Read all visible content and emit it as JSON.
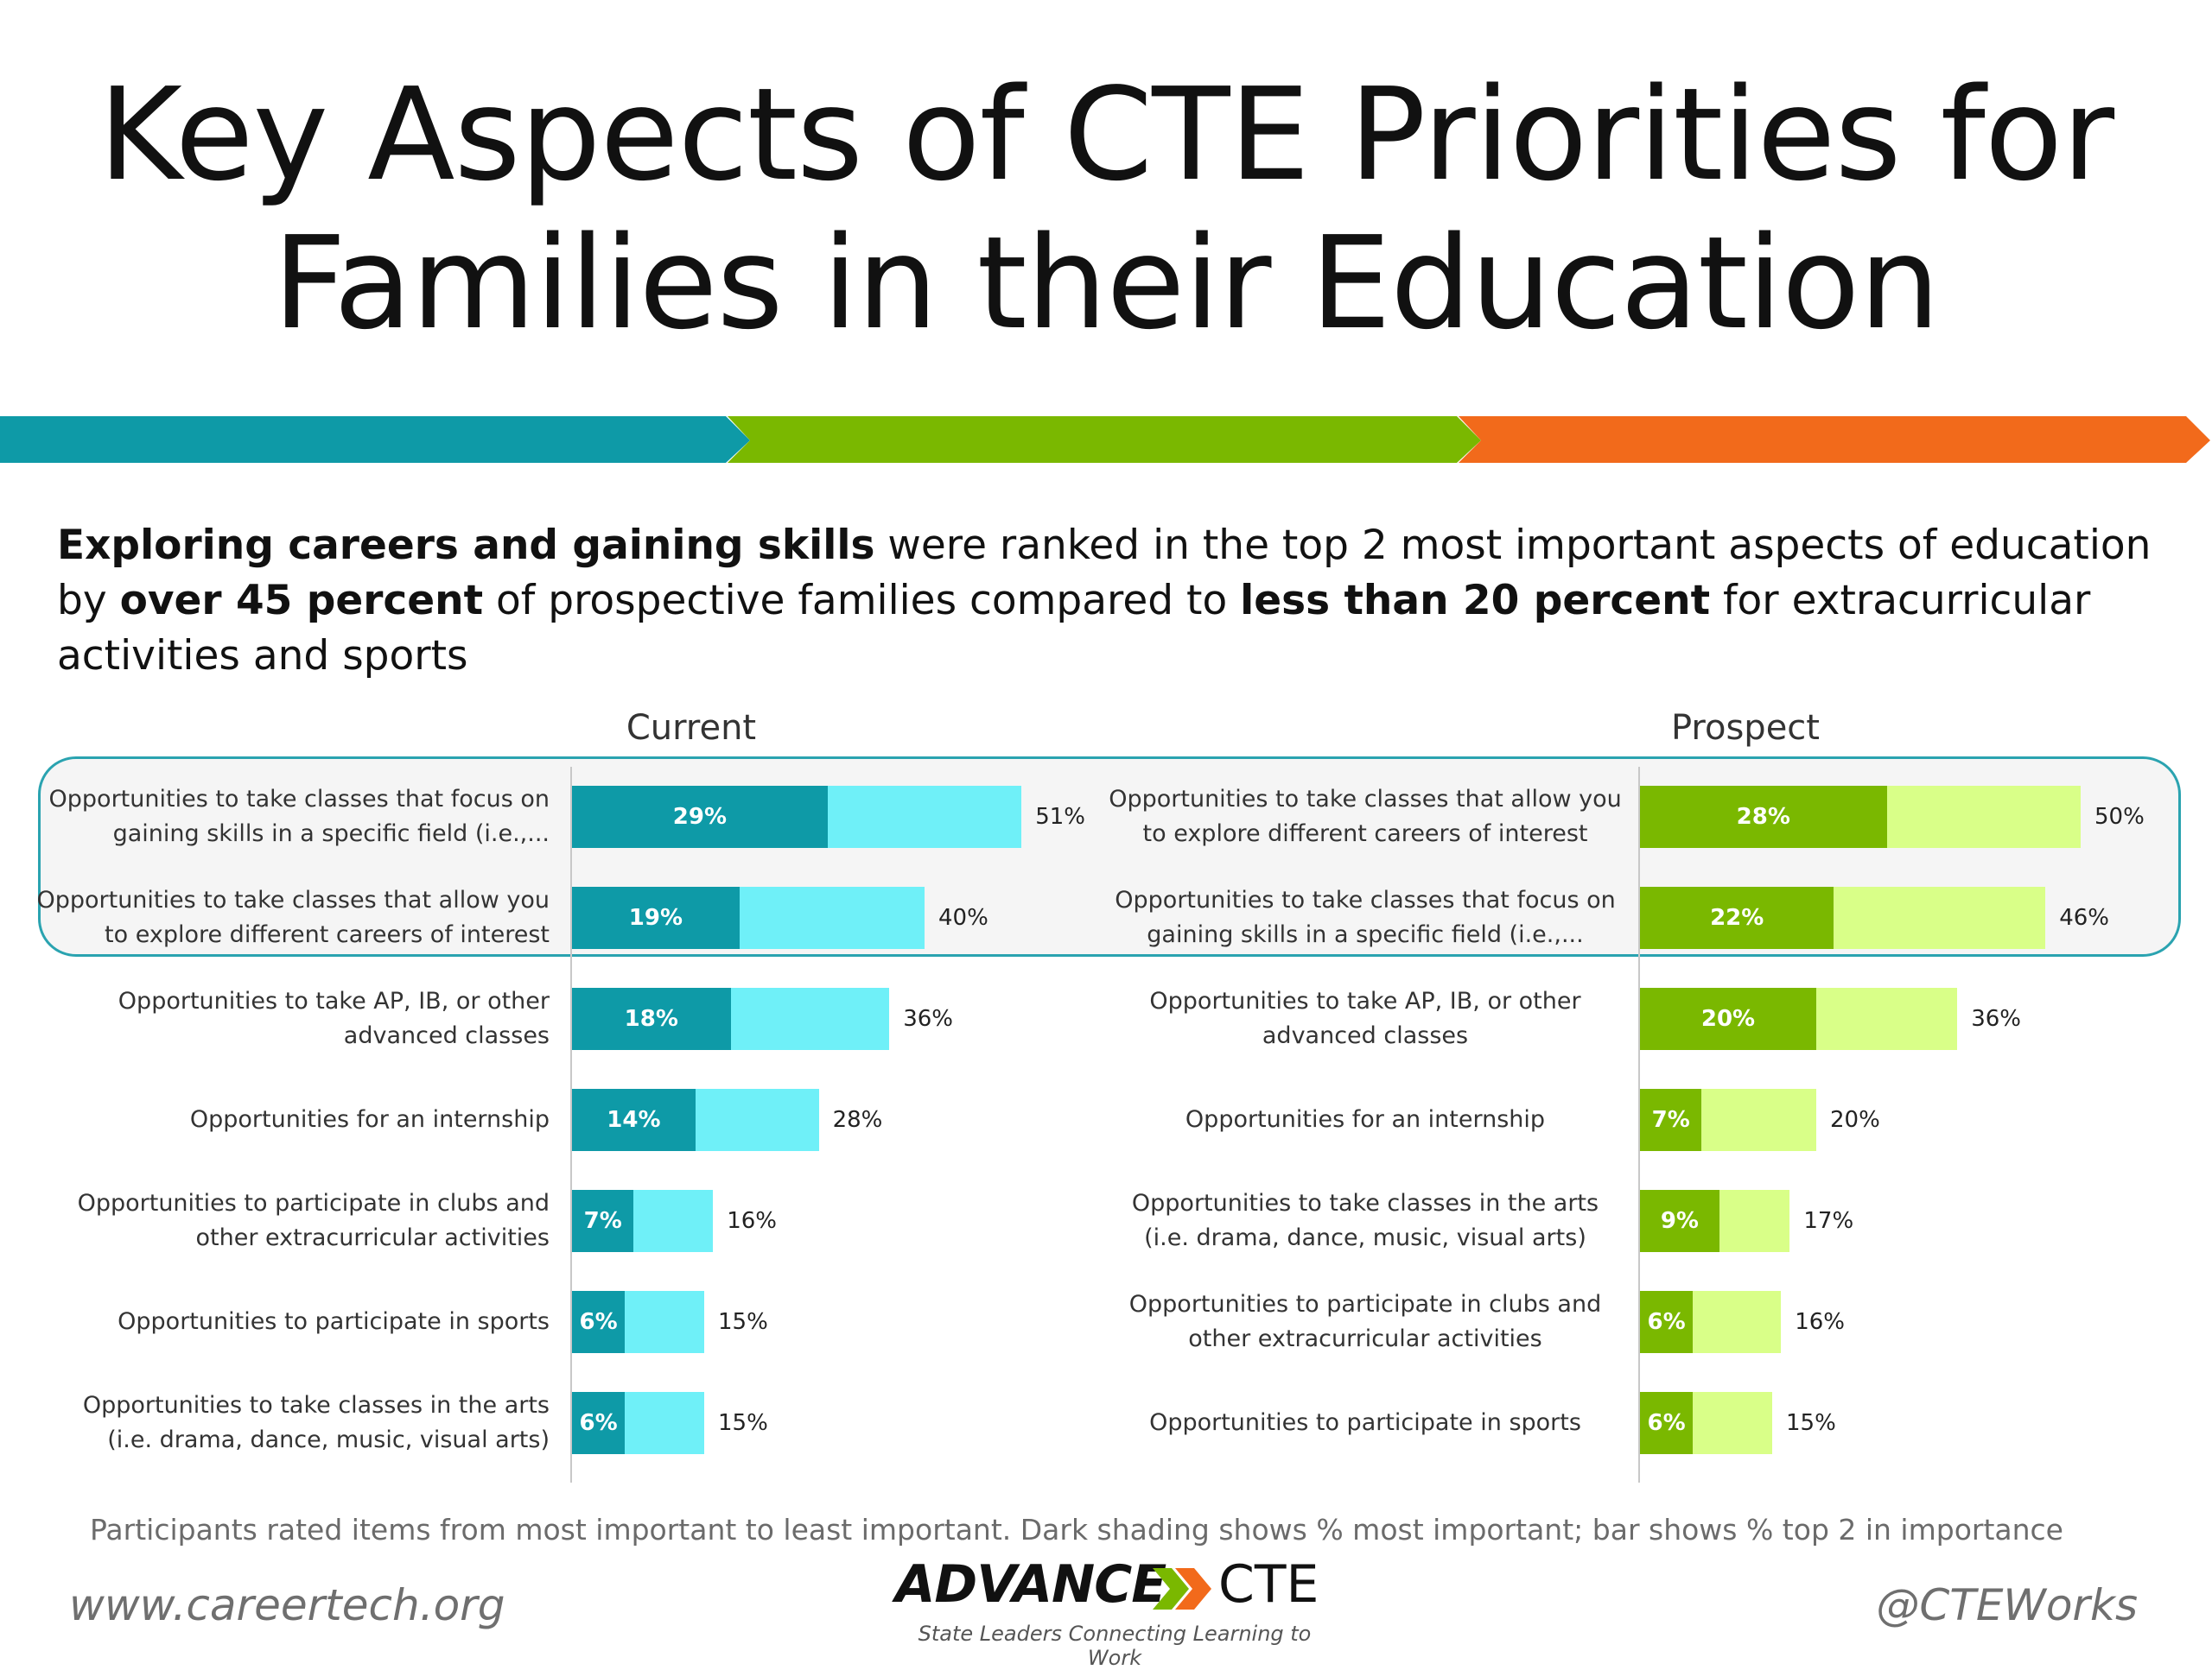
{
  "slide": {
    "title_line1": "Key Aspects of CTE Priorities for",
    "title_line2": "Families in their Education",
    "ribbon_colors": [
      "#0e9aa7",
      "#7ab800",
      "#f26a1b"
    ],
    "intro": {
      "b1": "Exploring careers and gaining skills",
      "t1": " were ranked in the top 2 most important aspects of education by ",
      "b2": "over 45 percent",
      "t2": " of prospective families compared to ",
      "b3": "less than 20 percent",
      "t3": " for extracurricular activities and sports"
    },
    "footnote": "Participants rated items from most important to least important.  Dark shading shows % most important; bar shows % top 2 in importance",
    "website": "www.careertech.org",
    "handle": "@CTEWorks",
    "logo": {
      "word1": "ADVANCE",
      "word2": "CTE",
      "tagline": "State Leaders Connecting Learning to Work",
      "chevron_colors": [
        "#7ab800",
        "#f26a1b"
      ]
    }
  },
  "chart_data": [
    {
      "type": "bar",
      "orientation": "horizontal",
      "title": "Current",
      "colors": {
        "most_important": "#0e9aa7",
        "top2": "#6ff0f8"
      },
      "categories": [
        "Opportunities to take classes that focus on gaining skills in a specific field (i.e.,...",
        "Opportunities to take classes that allow you to explore different careers of interest",
        "Opportunities to take AP, IB, or other advanced classes",
        "Opportunities for an internship",
        "Opportunities to participate in clubs and other extracurricular activities",
        "Opportunities to participate in sports",
        "Opportunities to take classes in the arts (i.e. drama, dance, music, visual arts)"
      ],
      "series": [
        {
          "values": [
            29,
            19,
            18,
            14,
            7,
            6,
            6
          ]
        },
        {
          "values": [
            51,
            40,
            36,
            28,
            16,
            15,
            15
          ]
        }
      ],
      "value_labels_most": [
        "29%",
        "19%",
        "18%",
        "14%",
        "7%",
        "6%",
        "6%"
      ],
      "value_labels_top2": [
        "51%",
        "40%",
        "36%",
        "28%",
        "16%",
        "15%",
        "15%"
      ],
      "highlighted_rows": [
        0,
        1
      ]
    },
    {
      "type": "bar",
      "orientation": "horizontal",
      "title": "Prospect",
      "colors": {
        "most_important": "#7ab800",
        "top2": "#d9ff88"
      },
      "categories": [
        "Opportunities to take classes that allow you to explore different careers of interest",
        "Opportunities to take classes that focus on gaining skills in a specific field (i.e.,...",
        "Opportunities to take AP, IB, or other advanced classes",
        "Opportunities for an internship",
        "Opportunities to take classes in the arts (i.e. drama, dance, music, visual arts)",
        "Opportunities to participate in clubs and other extracurricular activities",
        "Opportunities to participate in sports"
      ],
      "series": [
        {
          "values": [
            28,
            22,
            20,
            7,
            9,
            6,
            6
          ]
        },
        {
          "values": [
            50,
            46,
            36,
            20,
            17,
            16,
            15
          ]
        }
      ],
      "value_labels_most": [
        "28%",
        "22%",
        "20%",
        "7%",
        "9%",
        "6%",
        "6%"
      ],
      "value_labels_top2": [
        "50%",
        "46%",
        "36%",
        "20%",
        "17%",
        "16%",
        "15%"
      ],
      "highlighted_rows": [
        0,
        1
      ]
    }
  ]
}
